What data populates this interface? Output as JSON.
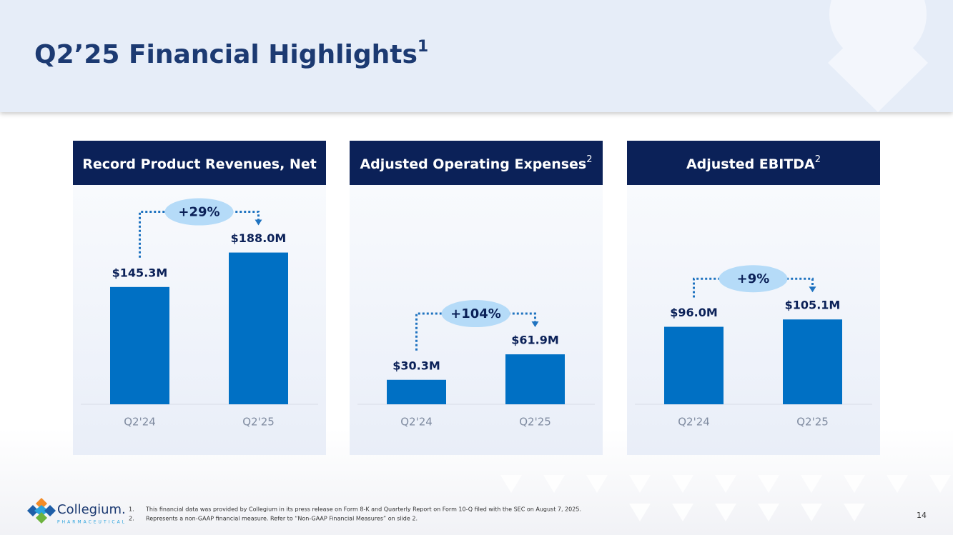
{
  "title": "Q2’25 Financial Highlights",
  "title_superscript": "1",
  "chart_data": [
    {
      "type": "bar",
      "title": "Record Product Revenues, Net",
      "categories": [
        "Q2'24",
        "Q2'25"
      ],
      "values": [
        145.3,
        188.0
      ],
      "value_labels": [
        "$145.3M",
        "$188.0M"
      ],
      "annotation": "+29%",
      "color": "#0070c4"
    },
    {
      "type": "bar",
      "title": "Adjusted Operating Expenses",
      "title_superscript": "2",
      "categories": [
        "Q2'24",
        "Q2'25"
      ],
      "values": [
        30.3,
        61.9
      ],
      "value_labels": [
        "$30.3M",
        "$61.9M"
      ],
      "annotation": "+104%",
      "color": "#0070c4"
    },
    {
      "type": "bar",
      "title": "Adjusted EBITDA",
      "title_superscript": "2",
      "categories": [
        "Q2'24",
        "Q2'25"
      ],
      "values": [
        96.0,
        105.1
      ],
      "value_labels": [
        "$96.0M",
        "$105.1M"
      ],
      "annotation": "+9%",
      "color": "#0070c4"
    }
  ],
  "footnotes": [
    {
      "number": "1.",
      "text": "This financial data was provided by Collegium in its press release on Form 8-K and Quarterly Report on Form 10-Q filed with the SEC on August 7, 2025."
    },
    {
      "number": "2.",
      "text": "Represents a non-GAAP financial measure. Refer to “Non-GAAP Financial Measures” on slide 2."
    }
  ],
  "logo": {
    "name": "Collegium.",
    "tagline": "PHARMACEUTICAL"
  },
  "page_number": "14"
}
